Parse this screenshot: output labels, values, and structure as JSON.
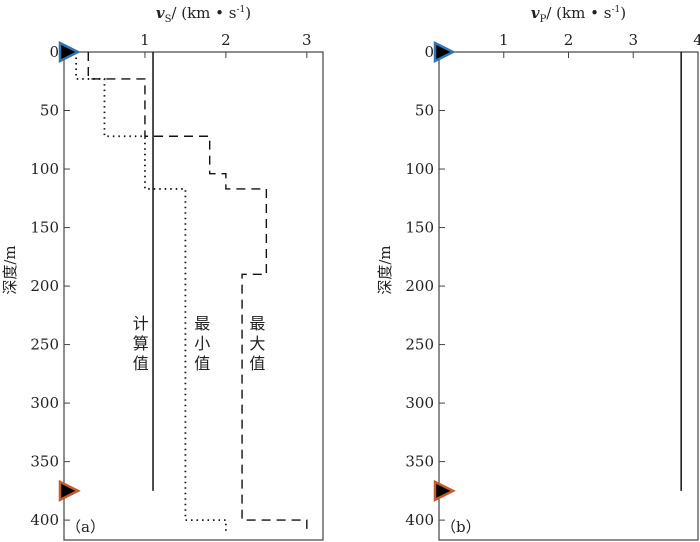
{
  "chart_data": [
    {
      "type": "line",
      "panel_label": "（a）",
      "title_var": "v",
      "title_sub": "S",
      "title_unit": "/ (km • s",
      "title_exp": "-1",
      "title_close": ")",
      "ylabel": "深度/m",
      "xlim": [
        0,
        3.2
      ],
      "ylim": [
        0,
        417
      ],
      "xticks": [
        1,
        2,
        3
      ],
      "yticks": [
        0,
        50,
        100,
        150,
        200,
        250,
        300,
        350,
        400
      ],
      "series": [
        {
          "name": "计算值",
          "style": "solid",
          "points": [
            [
              1.1,
              0
            ],
            [
              1.1,
              375
            ]
          ]
        },
        {
          "name": "最小值",
          "style": "dotted",
          "points": [
            [
              0.15,
              0
            ],
            [
              0.15,
              23
            ],
            [
              0.5,
              23
            ],
            [
              0.5,
              72
            ],
            [
              1.0,
              72
            ],
            [
              1.0,
              117
            ],
            [
              1.5,
              117
            ],
            [
              1.5,
              400
            ],
            [
              2.0,
              400
            ],
            [
              2.0,
              410
            ]
          ]
        },
        {
          "name": "最大值",
          "style": "dashed",
          "points": [
            [
              0.3,
              0
            ],
            [
              0.3,
              23
            ],
            [
              1.0,
              23
            ],
            [
              1.0,
              72
            ],
            [
              1.8,
              72
            ],
            [
              1.8,
              104
            ],
            [
              2.0,
              104
            ],
            [
              2.0,
              117
            ],
            [
              2.5,
              117
            ],
            [
              2.5,
              190
            ],
            [
              2.2,
              190
            ],
            [
              2.2,
              400
            ],
            [
              3.0,
              400
            ],
            [
              3.0,
              410
            ]
          ]
        }
      ],
      "annotations": [
        {
          "text": "计算值",
          "x": 0.93,
          "depth": 235
        },
        {
          "text": "最小值",
          "x": 1.69,
          "depth": 235
        },
        {
          "text": "最大值",
          "x": 2.37,
          "depth": 235
        }
      ],
      "markers": [
        {
          "name": "top-marker",
          "depth": 0,
          "color": "#2e75b6"
        },
        {
          "name": "bottom-marker",
          "depth": 375,
          "color": "#c55a2a"
        }
      ]
    },
    {
      "type": "line",
      "panel_label": "（b）",
      "title_var": "v",
      "title_sub": "P",
      "title_unit": "/ (km • s",
      "title_exp": "-1",
      "title_close": ")",
      "ylabel": "深度/m",
      "xlim": [
        0,
        4.0
      ],
      "ylim": [
        0,
        417
      ],
      "xticks": [
        1,
        2,
        3,
        4
      ],
      "yticks": [
        0,
        50,
        100,
        150,
        200,
        250,
        300,
        350,
        400
      ],
      "series": [
        {
          "name": "计算值",
          "style": "solid",
          "points": [
            [
              3.74,
              0
            ],
            [
              3.74,
              375
            ]
          ]
        }
      ],
      "annotations": [],
      "markers": [
        {
          "name": "top-marker",
          "depth": 0,
          "color": "#2e75b6"
        },
        {
          "name": "bottom-marker",
          "depth": 375,
          "color": "#c55a2a"
        }
      ]
    }
  ]
}
